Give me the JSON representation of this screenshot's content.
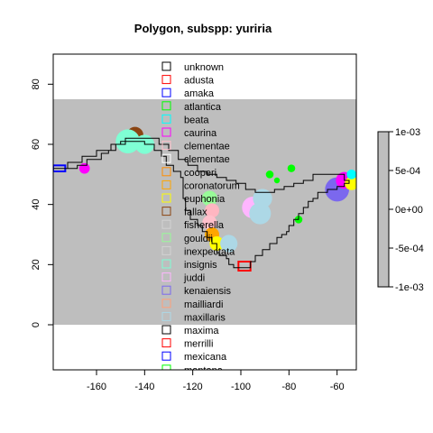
{
  "chart_data": {
    "type": "map",
    "title": "Polygon, subspp: yuriria",
    "xlim": [
      -178,
      -52
    ],
    "ylim": [
      -15,
      90
    ],
    "x_ticks": [
      -160,
      -140,
      -120,
      -100,
      -80,
      -60
    ],
    "y_ticks": [
      0,
      20,
      40,
      60,
      80
    ],
    "raster_extent": {
      "xmin": -178,
      "xmax": -52,
      "ymin": 0,
      "ymax": 75
    },
    "raster_fill": "#bebebe",
    "outline_path": [
      [
        -178,
        52
      ],
      [
        -172,
        52
      ],
      [
        -168,
        53
      ],
      [
        -164,
        55
      ],
      [
        -158,
        57
      ],
      [
        -155,
        58
      ],
      [
        -152,
        60
      ],
      [
        -150,
        61
      ],
      [
        -146,
        61
      ],
      [
        -140,
        60
      ],
      [
        -136,
        58
      ],
      [
        -133,
        56
      ],
      [
        -131,
        53
      ],
      [
        -128,
        51
      ],
      [
        -125,
        49
      ],
      [
        -124,
        46
      ],
      [
        -124,
        42
      ],
      [
        -123,
        38
      ],
      [
        -121,
        35
      ],
      [
        -118,
        33
      ],
      [
        -116,
        31
      ],
      [
        -114,
        29
      ],
      [
        -112,
        27
      ],
      [
        -110,
        24
      ],
      [
        -109,
        23
      ],
      [
        -106,
        22
      ],
      [
        -105,
        20
      ],
      [
        -103,
        19
      ],
      [
        -98,
        19
      ],
      [
        -96,
        21
      ],
      [
        -94,
        23
      ],
      [
        -91,
        25
      ],
      [
        -88,
        27
      ],
      [
        -85,
        29
      ],
      [
        -83,
        30
      ],
      [
        -81,
        31
      ],
      [
        -80,
        33
      ],
      [
        -78,
        35
      ],
      [
        -76,
        37
      ],
      [
        -74,
        39
      ],
      [
        -72,
        41
      ],
      [
        -70,
        42
      ],
      [
        -68,
        44
      ],
      [
        -64,
        45
      ],
      [
        -60,
        46
      ],
      [
        -57,
        47
      ],
      [
        -55,
        48
      ],
      [
        -57,
        50
      ],
      [
        -62,
        50
      ],
      [
        -66,
        50
      ],
      [
        -70,
        48
      ],
      [
        -74,
        47
      ],
      [
        -78,
        46
      ],
      [
        -82,
        45
      ],
      [
        -86,
        44
      ],
      [
        -90,
        44
      ],
      [
        -94,
        45
      ],
      [
        -98,
        47
      ],
      [
        -102,
        48
      ],
      [
        -106,
        49
      ],
      [
        -110,
        50
      ],
      [
        -114,
        51
      ],
      [
        -118,
        53
      ],
      [
        -122,
        55
      ],
      [
        -126,
        58
      ],
      [
        -130,
        60
      ],
      [
        -134,
        62
      ],
      [
        -138,
        62
      ],
      [
        -142,
        62
      ],
      [
        -148,
        60
      ],
      [
        -154,
        58
      ],
      [
        -160,
        56
      ],
      [
        -166,
        54
      ],
      [
        -172,
        52
      ],
      [
        -178,
        52
      ]
    ],
    "blobs": [
      {
        "x": -144,
        "y": 63,
        "r": 3.5,
        "color": "#8b4513"
      },
      {
        "x": -147,
        "y": 61,
        "r": 5.0,
        "color": "#7fffd4"
      },
      {
        "x": -140,
        "y": 60,
        "r": 4.0,
        "color": "#7fffd4"
      },
      {
        "x": -165,
        "y": 52,
        "r": 2.2,
        "color": "#ff00ff"
      },
      {
        "x": -113,
        "y": 42,
        "r": 3.2,
        "color": "#98fb98"
      },
      {
        "x": -112,
        "y": 38,
        "r": 3.0,
        "color": "#ffb6c1"
      },
      {
        "x": -113,
        "y": 34,
        "r": 3.0,
        "color": "#ffc0cb"
      },
      {
        "x": -112,
        "y": 30,
        "r": 3.0,
        "color": "#ffa500"
      },
      {
        "x": -110,
        "y": 27,
        "r": 3.0,
        "color": "#ffff00"
      },
      {
        "x": -105,
        "y": 27,
        "r": 3.6,
        "color": "#add8e6"
      },
      {
        "x": -95,
        "y": 39,
        "r": 4.5,
        "color": "#ffb6ff"
      },
      {
        "x": -92,
        "y": 37,
        "r": 4.5,
        "color": "#add8e6"
      },
      {
        "x": -91,
        "y": 42,
        "r": 4.0,
        "color": "#add8e6"
      },
      {
        "x": -88,
        "y": 50,
        "r": 1.6,
        "color": "#00ff00"
      },
      {
        "x": -85,
        "y": 48,
        "r": 1.2,
        "color": "#00ff00"
      },
      {
        "x": -79,
        "y": 52,
        "r": 1.6,
        "color": "#00ff00"
      },
      {
        "x": -76,
        "y": 35,
        "r": 1.6,
        "color": "#00ff00"
      },
      {
        "x": -60,
        "y": 45,
        "r": 5.0,
        "color": "#7b68ee"
      },
      {
        "x": -57,
        "y": 48,
        "r": 3.5,
        "color": "#ff00ff"
      },
      {
        "x": -54,
        "y": 47,
        "r": 2.8,
        "color": "#ffff00"
      },
      {
        "x": -54,
        "y": 50,
        "r": 2.0,
        "color": "#00ffff"
      }
    ],
    "rects": [
      {
        "x0": -178,
        "y0": 51,
        "x1": -173,
        "y1": 53,
        "color": "#0000ff"
      },
      {
        "x0": -101,
        "y0": 18,
        "x1": -96,
        "y1": 21,
        "color": "#ff0000"
      }
    ],
    "legend": {
      "position": "top-center",
      "entries": [
        {
          "label": "unknown",
          "color": "#000000"
        },
        {
          "label": "adusta",
          "color": "#ff0000"
        },
        {
          "label": "amaka",
          "color": "#0000ff"
        },
        {
          "label": "atlantica",
          "color": "#00ff00"
        },
        {
          "label": "beata",
          "color": "#00ffff"
        },
        {
          "label": "caurina",
          "color": "#ff00ff"
        },
        {
          "label": "clementae",
          "color": "#ffc0cb"
        },
        {
          "label": "clementae",
          "color": "#ffffff"
        },
        {
          "label": "cooperi",
          "color": "#ff8c00"
        },
        {
          "label": "coronatorum",
          "color": "#ffa500"
        },
        {
          "label": "euphonia",
          "color": "#ffff00"
        },
        {
          "label": "fallax",
          "color": "#8b4513"
        },
        {
          "label": "fisherella",
          "color": "#d3d3d3"
        },
        {
          "label": "gouldii",
          "color": "#98fb98"
        },
        {
          "label": "inexpectata",
          "color": "#d3d3d3"
        },
        {
          "label": "insignis",
          "color": "#7fffd4"
        },
        {
          "label": "juddi",
          "color": "#ffb6ff"
        },
        {
          "label": "kenaiensis",
          "color": "#7b68ee"
        },
        {
          "label": "mailliardi",
          "color": "#ffa07a"
        },
        {
          "label": "maxillaris",
          "color": "#add8e6"
        },
        {
          "label": "maxima",
          "color": "#000000"
        },
        {
          "label": "merrilli",
          "color": "#ff0000"
        },
        {
          "label": "mexicana",
          "color": "#0000ff"
        },
        {
          "label": "montana",
          "color": "#00ff00"
        }
      ]
    },
    "colorbar": {
      "labels": [
        "1e-03",
        "5e-04",
        "0e+00",
        "-5e-04",
        "-1e-03"
      ],
      "range": [
        -0.001,
        0.001
      ],
      "color": "#bebebe"
    }
  }
}
